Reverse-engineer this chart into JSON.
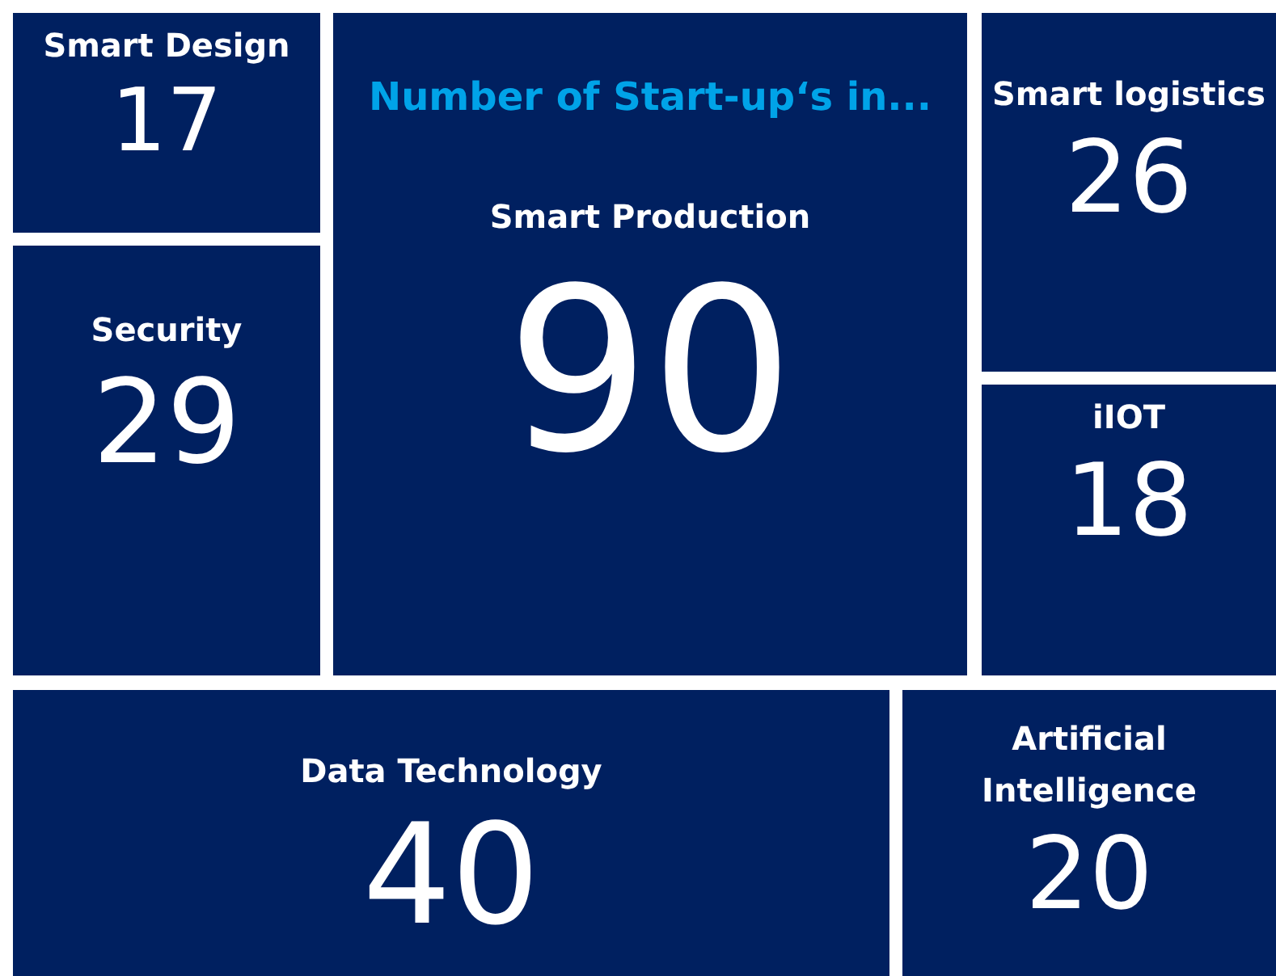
{
  "chart_data": {
    "type": "other",
    "title": "Number of Start-up‘s in...",
    "categories": [
      "Smart Design",
      "Security",
      "Smart Production",
      "Smart logistics",
      "iIOT",
      "Data Technology",
      "Artificial Intelligence"
    ],
    "values": [
      17,
      29,
      90,
      26,
      18,
      40,
      20
    ],
    "data_labels": true,
    "colors": [
      "#002060",
      "#002060",
      "#002060",
      "#002060",
      "#002060",
      "#002060",
      "#002060"
    ]
  }
}
